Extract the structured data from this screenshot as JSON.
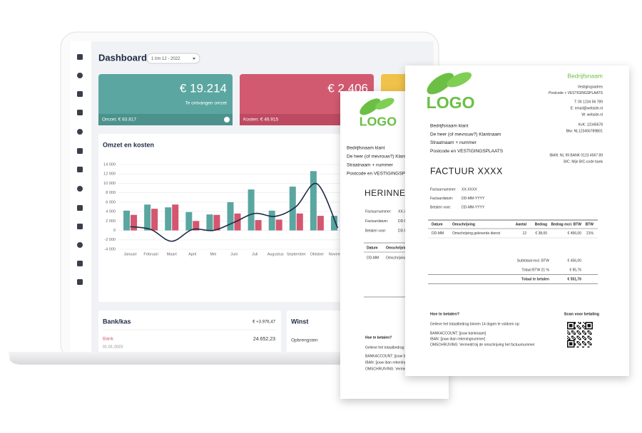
{
  "dashboard": {
    "title": "Dashboard",
    "period": "1 t/m 12 - 2022",
    "cards": [
      {
        "amount": "€ 19.214",
        "label": "Te ontvangen omzet",
        "footer": "Omzet: € 83.817"
      },
      {
        "amount": "€ 2.406",
        "label": "Te betalen",
        "footer": "Kosten: € 46.915"
      }
    ],
    "chart": {
      "title": "Omzet en kosten",
      "categories": [
        "Januari",
        "Februari",
        "Maart",
        "April",
        "Mei",
        "Juni",
        "Juli",
        "Augustus",
        "September",
        "Oktober",
        "November"
      ],
      "ylim": [
        -4000,
        14000
      ],
      "yticks": [
        {
          "value": 14000,
          "label": "14 000"
        },
        {
          "value": 12000,
          "label": "12 000"
        },
        {
          "value": 10000,
          "label": "10 000"
        },
        {
          "value": 8000,
          "label": "8 000"
        },
        {
          "value": 6000,
          "label": "6 000"
        },
        {
          "value": 4000,
          "label": "4 000"
        },
        {
          "value": 2000,
          "label": "2 000"
        },
        0,
        {
          "value": -2000,
          "label": "-2 000"
        },
        {
          "value": -4000,
          "label": "-4 000"
        }
      ],
      "series": [
        {
          "type": "bar",
          "color": "#5aa6a0",
          "values": [
            4200,
            5500,
            4900,
            3900,
            3400,
            6000,
            8700,
            4200,
            9300,
            12600,
            3100
          ]
        },
        {
          "type": "bar",
          "color": "#d4566f",
          "values": [
            3300,
            4600,
            5500,
            2000,
            3300,
            3600,
            2200,
            2300,
            3600,
            3100,
            null
          ]
        },
        {
          "type": "line",
          "color": "#1f2a44",
          "values": [
            800,
            200,
            -2300,
            200,
            0,
            1700,
            3600,
            3000,
            5100,
            9900,
            500
          ]
        }
      ]
    },
    "bank": {
      "title": "Bank/kas",
      "total": "€ +3.976,47",
      "account": "Bank",
      "amount": "24.652,23",
      "date": "01-01-2023"
    },
    "profit": {
      "title": "Winst",
      "row": "Opbrengsten"
    }
  },
  "reminder": {
    "logo": "LOGO",
    "client": [
      "Bedrijfsnaam klant",
      "De heer (of mevrouw?) Klantnaam",
      "Straatnaam + nummer",
      "Postcode en VESTIGINGSPLAATS"
    ],
    "title": "HERINNERING",
    "fields": [
      {
        "label": "Factuurnummer:",
        "value": "XX-XXXX"
      },
      {
        "label": "Factuurdatum:",
        "value": "DD-MM-YYYY"
      },
      {
        "label": "Betalen voor:",
        "value": "DD-MM-YYYY"
      }
    ],
    "table_header": [
      "Datum",
      "Omschrijving"
    ],
    "table_row": [
      "DD-MM",
      "Omschrijving geleverde dienst"
    ],
    "payment": {
      "title": "Hoe te betalen?",
      "text": "Gelieve het totaalbedrag binnen 14 dagen te voldoen op:",
      "lines": [
        "BANKACCOUNT: [jouw banknaam]",
        "IBAN: [jouw iban rekeningnummer]",
        "OMSCHRUIVING: Vermeldt bij de omschrijving het factuurnummer"
      ]
    }
  },
  "invoice": {
    "logo": "LOGO",
    "company": "Bedrijfsnaam",
    "address": [
      "Vestigingsadres",
      "Postcode + VESTIGINGSPLAATS"
    ],
    "contact": [
      "T: 06 1234 56 789",
      "E: email@website.nl",
      "W: website.nl"
    ],
    "registration": [
      "KvK: 12345678",
      "Btw: NL123456789B01"
    ],
    "bank": [
      "IBAN: NL 99 BANK 0123 4567 89",
      "BIC: Mijn BIC-code bank"
    ],
    "client": [
      "Bedrijfsnaam klant",
      "De heer (of mevrouw?) Klantnaam",
      "Straatnaam + nummer",
      "Postcode en VESTIGINGSPLAATS"
    ],
    "title": "FACTUUR XXXX",
    "fields": [
      {
        "label": "Factuurnummer:",
        "value": "XX-XXXX"
      },
      {
        "label": "Factuurdatum:",
        "value": "DD-MM-YYYY"
      },
      {
        "label": "Betalen voor:",
        "value": "DD-MM-YYYY"
      }
    ],
    "table_header": [
      "Datum",
      "Omschrijving",
      "Aantal",
      "Bedrag",
      "Bedrag excl. BTW",
      "BTW"
    ],
    "table_row": [
      "DD-MM",
      "Omschrijving geleverde dienst",
      "12",
      "€ 38,00",
      "€ 456,00",
      "21%"
    ],
    "totals": [
      {
        "label": "Subtotaal excl. BTW",
        "value": "€ 456,00"
      },
      {
        "label": "Totaal BTW 21 %",
        "value": "€ 95,76"
      },
      {
        "label": "Totaal te betalen",
        "value": "€ 551,76"
      }
    ],
    "payment": {
      "title": "Hoe te betalen?",
      "scan": "Scan voor betaling",
      "text": "Gelieve het totaalbedrag binnen 14 dagen te voldoen op:",
      "lines": [
        "BANKACCOUNT: [jouw banknaam]",
        "IBAN: [jouw iban rekeningnummer]",
        "OMSCHRIJVING: Vermeldt bij de omschrijving het factuurnummer"
      ]
    }
  }
}
